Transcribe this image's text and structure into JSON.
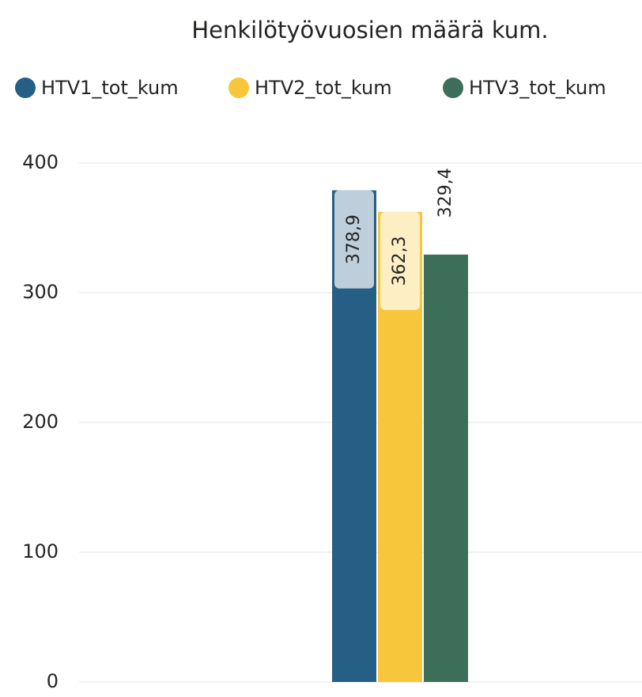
{
  "chart_data": {
    "type": "bar",
    "title": "Henkilötyövuosien määrä kum.",
    "categories": [
      null
    ],
    "series": [
      {
        "name": "HTV1_tot_kum",
        "color": "#255f85",
        "values": [
          378.9
        ],
        "value_labels": [
          "378,9"
        ]
      },
      {
        "name": "HTV2_tot_kum",
        "color": "#f8c63a",
        "values": [
          362.3
        ],
        "value_labels": [
          "362,3"
        ]
      },
      {
        "name": "HTV3_tot_kum",
        "color": "#3d6e5a",
        "values": [
          329.4
        ],
        "value_labels": [
          "329,4"
        ]
      }
    ],
    "ylim": [
      0,
      400
    ],
    "yticks": [
      0,
      100,
      200,
      300,
      400
    ],
    "grid": true,
    "legend": "top"
  }
}
